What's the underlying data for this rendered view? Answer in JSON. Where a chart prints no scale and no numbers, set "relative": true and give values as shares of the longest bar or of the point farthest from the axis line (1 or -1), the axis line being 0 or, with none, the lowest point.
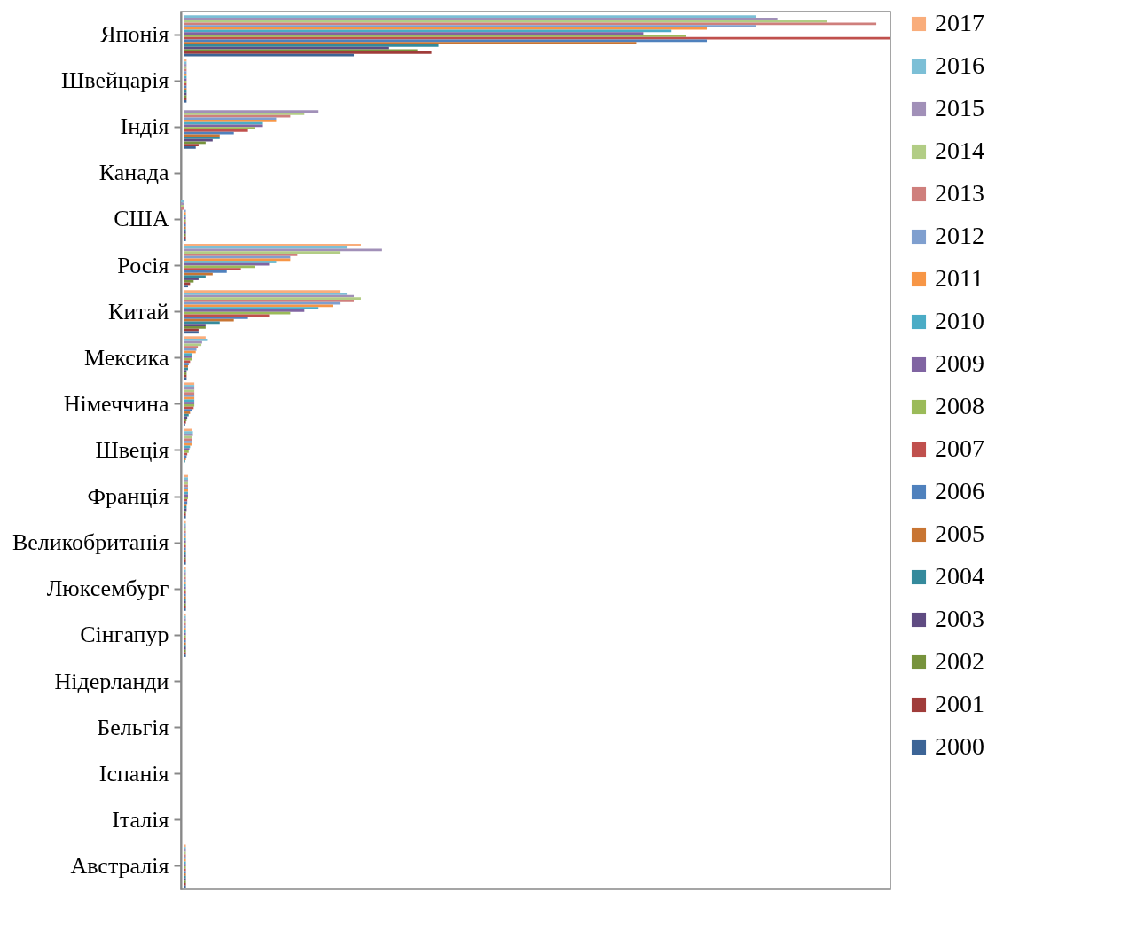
{
  "chart_data": {
    "type": "bar",
    "orientation": "horizontal",
    "relative": true,
    "legend": "right",
    "categories": [
      "Японія",
      "Швейцарія",
      "Індія",
      "Канада",
      "США",
      "Росія",
      "Китай",
      "Мексика",
      "Німеччина",
      "Швеція",
      "Франція",
      "Великобританія",
      "Люксембург",
      "Сінгапур",
      "Нідерланди",
      "Бельгія",
      "Іспанія",
      "Італія",
      "Австралія"
    ],
    "series": [
      {
        "name": "2017",
        "color": "#f9ad7b",
        "values": [
          null,
          0.003,
          null,
          null,
          null,
          0.25,
          0.22,
          0.03,
          0.014,
          0.011,
          0.005,
          0.002,
          0.002,
          0.002,
          null,
          null,
          null,
          null,
          0.002
        ]
      },
      {
        "name": "2016",
        "color": "#7cbfd6",
        "values": [
          0.81,
          0.003,
          null,
          null,
          -0.005,
          0.23,
          0.23,
          0.032,
          0.014,
          0.012,
          0.005,
          0.002,
          0.002,
          0.002,
          null,
          null,
          null,
          null,
          0.002
        ]
      },
      {
        "name": "2015",
        "color": "#a190b8",
        "values": [
          0.84,
          0.003,
          0.19,
          null,
          -0.005,
          0.28,
          0.24,
          0.025,
          0.014,
          0.012,
          0.005,
          0.002,
          0.002,
          0.002,
          null,
          null,
          null,
          null,
          0.002
        ]
      },
      {
        "name": "2014",
        "color": "#b2cd85",
        "values": [
          0.91,
          0.003,
          0.17,
          null,
          -0.005,
          0.22,
          0.25,
          0.024,
          0.014,
          0.011,
          0.005,
          0.002,
          0.002,
          0.002,
          null,
          null,
          null,
          null,
          0.002
        ]
      },
      {
        "name": "2013",
        "color": "#cf7f7c",
        "values": [
          0.98,
          0.003,
          0.15,
          null,
          -0.005,
          0.16,
          0.24,
          0.019,
          0.014,
          0.011,
          0.005,
          0.002,
          0.002,
          0.002,
          null,
          null,
          null,
          null,
          0.002
        ]
      },
      {
        "name": "2012",
        "color": "#7f9fcf",
        "values": [
          0.81,
          0.003,
          0.13,
          null,
          0.002,
          0.15,
          0.22,
          0.017,
          0.014,
          0.01,
          0.005,
          0.002,
          0.002,
          0.002,
          null,
          null,
          null,
          null,
          0.002
        ]
      },
      {
        "name": "2011",
        "color": "#f79646",
        "values": [
          0.74,
          0.003,
          0.13,
          null,
          0.002,
          0.15,
          0.21,
          0.016,
          0.014,
          0.01,
          0.005,
          0.002,
          0.002,
          0.002,
          null,
          null,
          null,
          null,
          0.002
        ]
      },
      {
        "name": "2010",
        "color": "#4bacc6",
        "values": [
          0.69,
          0.003,
          0.11,
          null,
          0.002,
          0.13,
          0.19,
          0.011,
          0.014,
          0.008,
          0.005,
          0.002,
          0.002,
          0.002,
          null,
          null,
          null,
          null,
          0.002
        ]
      },
      {
        "name": "2009",
        "color": "#8064a2",
        "values": [
          0.65,
          0.003,
          0.11,
          null,
          0.002,
          0.12,
          0.17,
          0.01,
          0.014,
          0.007,
          0.005,
          0.002,
          0.002,
          0.002,
          null,
          null,
          null,
          null,
          0.002
        ]
      },
      {
        "name": "2008",
        "color": "#9bbb59",
        "values": [
          0.71,
          0.003,
          0.1,
          null,
          0.002,
          0.1,
          0.15,
          0.011,
          0.014,
          0.006,
          0.005,
          0.002,
          0.002,
          0.002,
          null,
          null,
          null,
          null,
          0.002
        ]
      },
      {
        "name": "2007",
        "color": "#c0504d",
        "values": [
          1,
          0.003,
          0.09,
          null,
          0.002,
          0.08,
          0.12,
          0.008,
          0.013,
          0.004,
          0.004,
          0.002,
          0.002,
          0.002,
          null,
          null,
          null,
          null,
          0.002
        ]
      },
      {
        "name": "2006",
        "color": "#4f81bd",
        "values": [
          0.74,
          0.003,
          0.07,
          null,
          0.002,
          0.06,
          0.09,
          0.006,
          0.011,
          0.003,
          0.004,
          0.002,
          0.002,
          0.002,
          null,
          null,
          null,
          null,
          0.002
        ]
      },
      {
        "name": "2005",
        "color": "#c87533",
        "values": [
          0.64,
          0.003,
          0.05,
          null,
          0.002,
          0.04,
          0.07,
          0.005,
          0.008,
          0.002,
          0.003,
          0.002,
          0.002,
          0.002,
          null,
          null,
          null,
          null,
          0.002
        ]
      },
      {
        "name": "2004",
        "color": "#358a9c",
        "values": [
          0.36,
          0.003,
          0.05,
          null,
          0.002,
          0.03,
          0.05,
          0.005,
          0.006,
          0.001,
          0.003,
          0.002,
          0.002,
          0.002,
          null,
          null,
          null,
          null,
          0.002
        ]
      },
      {
        "name": "2003",
        "color": "#5f4b82",
        "values": [
          0.29,
          0.003,
          0.04,
          null,
          0.002,
          0.02,
          0.03,
          0.003,
          0.004,
          null,
          0.003,
          0.002,
          0.002,
          0.002,
          null,
          null,
          null,
          null,
          0.002
        ]
      },
      {
        "name": "2002",
        "color": "#77933c",
        "values": [
          0.33,
          0.003,
          0.03,
          null,
          0.002,
          0.013,
          0.03,
          0.003,
          0.003,
          null,
          0.002,
          0.002,
          0.002,
          0.002,
          null,
          null,
          null,
          null,
          0.002
        ]
      },
      {
        "name": "2001",
        "color": "#a03c3a",
        "values": [
          0.35,
          0.003,
          0.02,
          null,
          0.002,
          0.008,
          0.02,
          0.003,
          0.002,
          null,
          0.002,
          0.002,
          0.002,
          0.002,
          null,
          null,
          null,
          null,
          0.002
        ]
      },
      {
        "name": "2000",
        "color": "#3c6496",
        "values": [
          0.24,
          0.003,
          0.016,
          null,
          0.002,
          0.005,
          0.02,
          0.003,
          0.001,
          null,
          0.002,
          0.002,
          0.002,
          0.002,
          null,
          null,
          null,
          null,
          0.002
        ]
      }
    ]
  }
}
